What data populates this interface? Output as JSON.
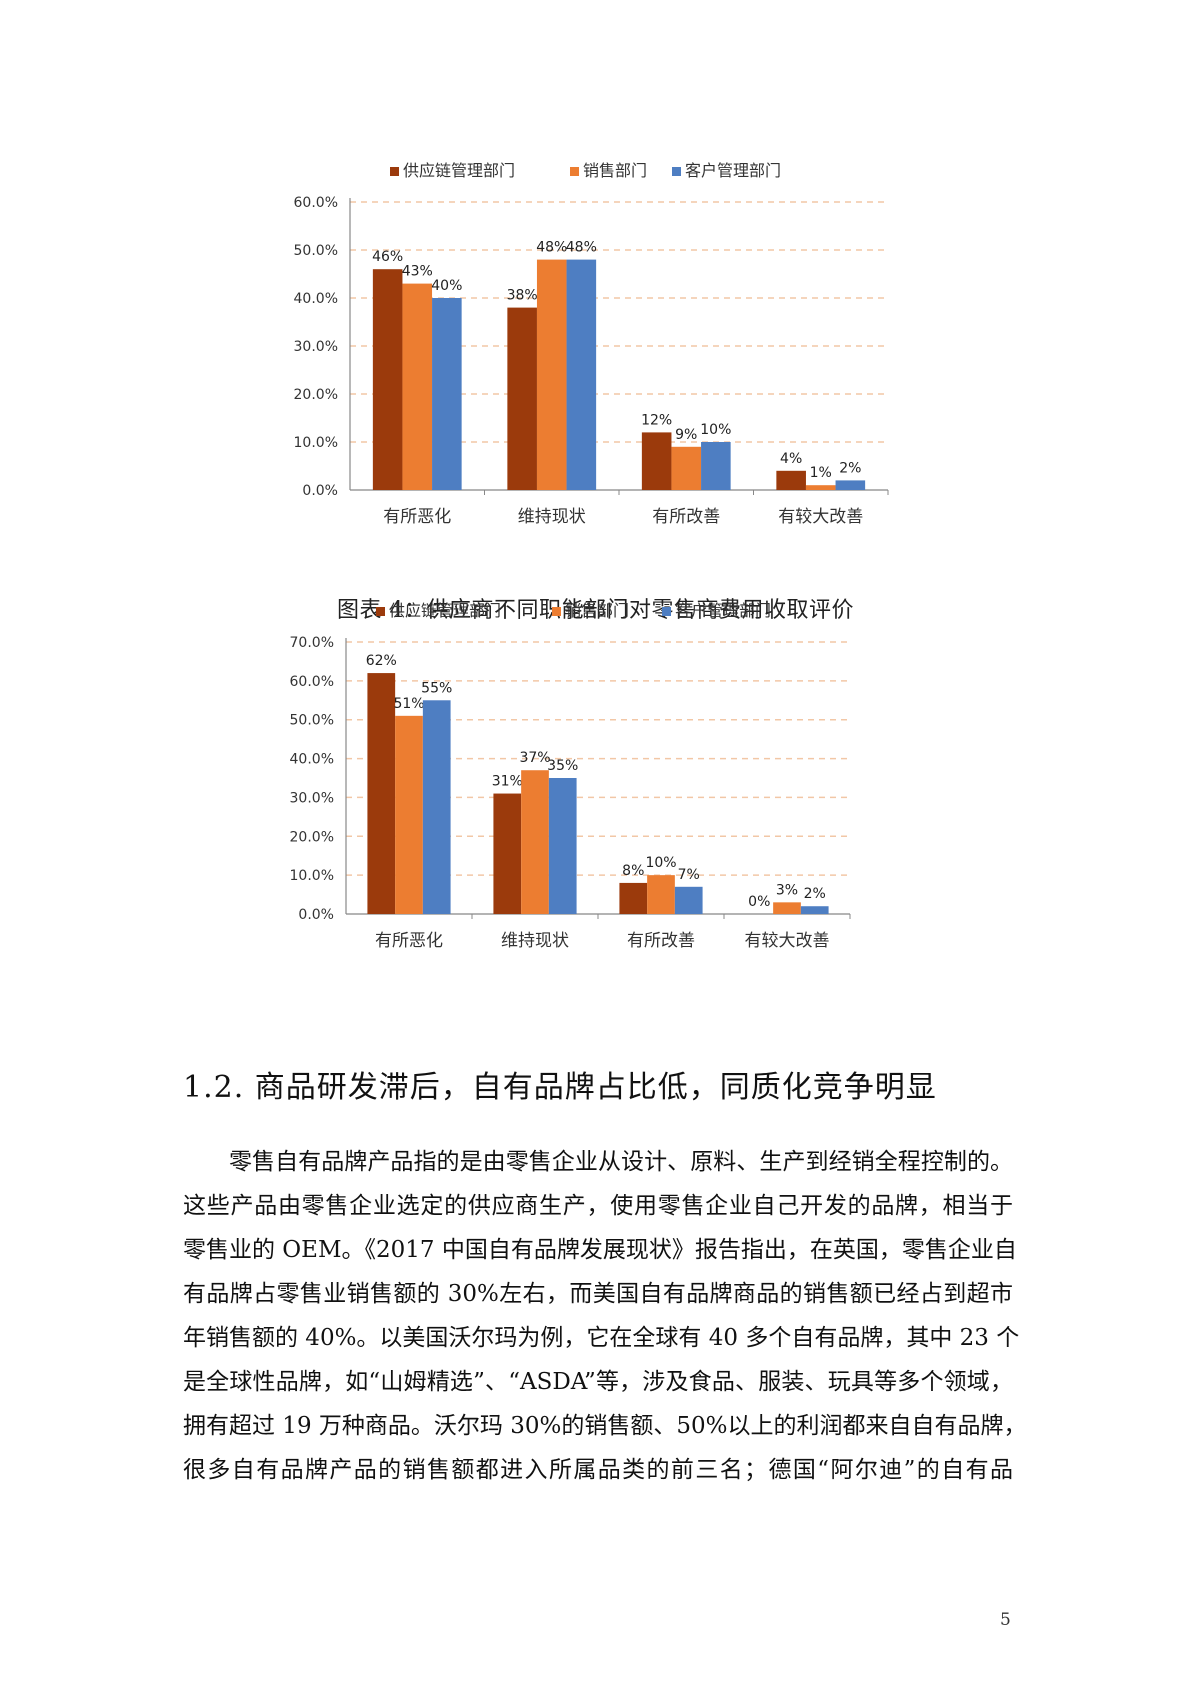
{
  "chart_data": [
    {
      "type": "bar",
      "title": "",
      "categories": [
        "有所恶化",
        "维持现状",
        "有所改善",
        "有较大改善"
      ],
      "series": [
        {
          "name": "供应链管理部门",
          "color": "#9b3a0c",
          "values": [
            46,
            38,
            12,
            4
          ],
          "labels": [
            "46%",
            "38%",
            "12%",
            "4%"
          ]
        },
        {
          "name": "销售部门",
          "color": "#ec7d31",
          "values": [
            43,
            48,
            9,
            1
          ],
          "labels": [
            "43%",
            "48%",
            "9%",
            "1%"
          ]
        },
        {
          "name": "客户管理部门",
          "color": "#4e7ec2",
          "values": [
            40,
            48,
            10,
            2
          ],
          "labels": [
            "40%",
            "48%",
            "10%",
            "2%"
          ]
        }
      ],
      "y_ticks": [
        "0.0%",
        "10.0%",
        "20.0%",
        "30.0%",
        "40.0%",
        "50.0%",
        "60.0%"
      ],
      "ylim": [
        0,
        60
      ],
      "grid": true,
      "grid_style": "dashed",
      "legend": "top"
    },
    {
      "type": "bar",
      "title": "",
      "categories": [
        "有所恶化",
        "维持现状",
        "有所改善",
        "有较大改善"
      ],
      "series": [
        {
          "name": "供应链管理部门",
          "color": "#9b3a0c",
          "values": [
            62,
            31,
            8,
            0
          ],
          "labels": [
            "62%",
            "31%",
            "8%",
            "0%"
          ]
        },
        {
          "name": "销售部门",
          "color": "#ec7d31",
          "values": [
            51,
            37,
            10,
            3
          ],
          "labels": [
            "51%",
            "37%",
            "10%",
            "3%"
          ]
        },
        {
          "name": "客户管理部门",
          "color": "#4e7ec2",
          "values": [
            55,
            35,
            7,
            2
          ],
          "labels": [
            "55%",
            "35%",
            "7%",
            "2%"
          ]
        }
      ],
      "y_ticks": [
        "0.0%",
        "10.0%",
        "20.0%",
        "30.0%",
        "40.0%",
        "50.0%",
        "60.0%",
        "70.0%"
      ],
      "ylim": [
        0,
        70
      ],
      "grid": true,
      "grid_style": "dashed",
      "legend": "top"
    }
  ],
  "figure_caption": "图表 4：供应商不同职能部门对零售商费用收取评价",
  "section": {
    "heading": "1.2. 商品研发滞后，自有品牌占比低，同质化竞争明显",
    "paragraph_lines": [
      "零售自有品牌产品指的是由零售企业从设计、原料、生产到经销全程控制的。",
      "这些产品由零售企业选定的供应商生产，使用零售企业自己开发的品牌，相当于",
      "零售业的 OEM。《2017 中国自有品牌发展现状》报告指出，在英国，零售企业自",
      "有品牌占零售业销售额的 30%左右，而美国自有品牌商品的销售额已经占到超市",
      "年销售额的 40%。以美国沃尔玛为例，它在全球有 40 多个自有品牌，其中 23 个",
      "是全球性品牌，如“山姆精选”、“ASDA”等，涉及食品、服装、玩具等多个领域，",
      "拥有超过 19 万种商品。沃尔玛 30%的销售额、50%以上的利润都来自自有品牌，",
      "很多自有品牌产品的销售额都进入所属品类的前三名；德国“阿尔迪”的自有品"
    ]
  },
  "page_number": "5"
}
